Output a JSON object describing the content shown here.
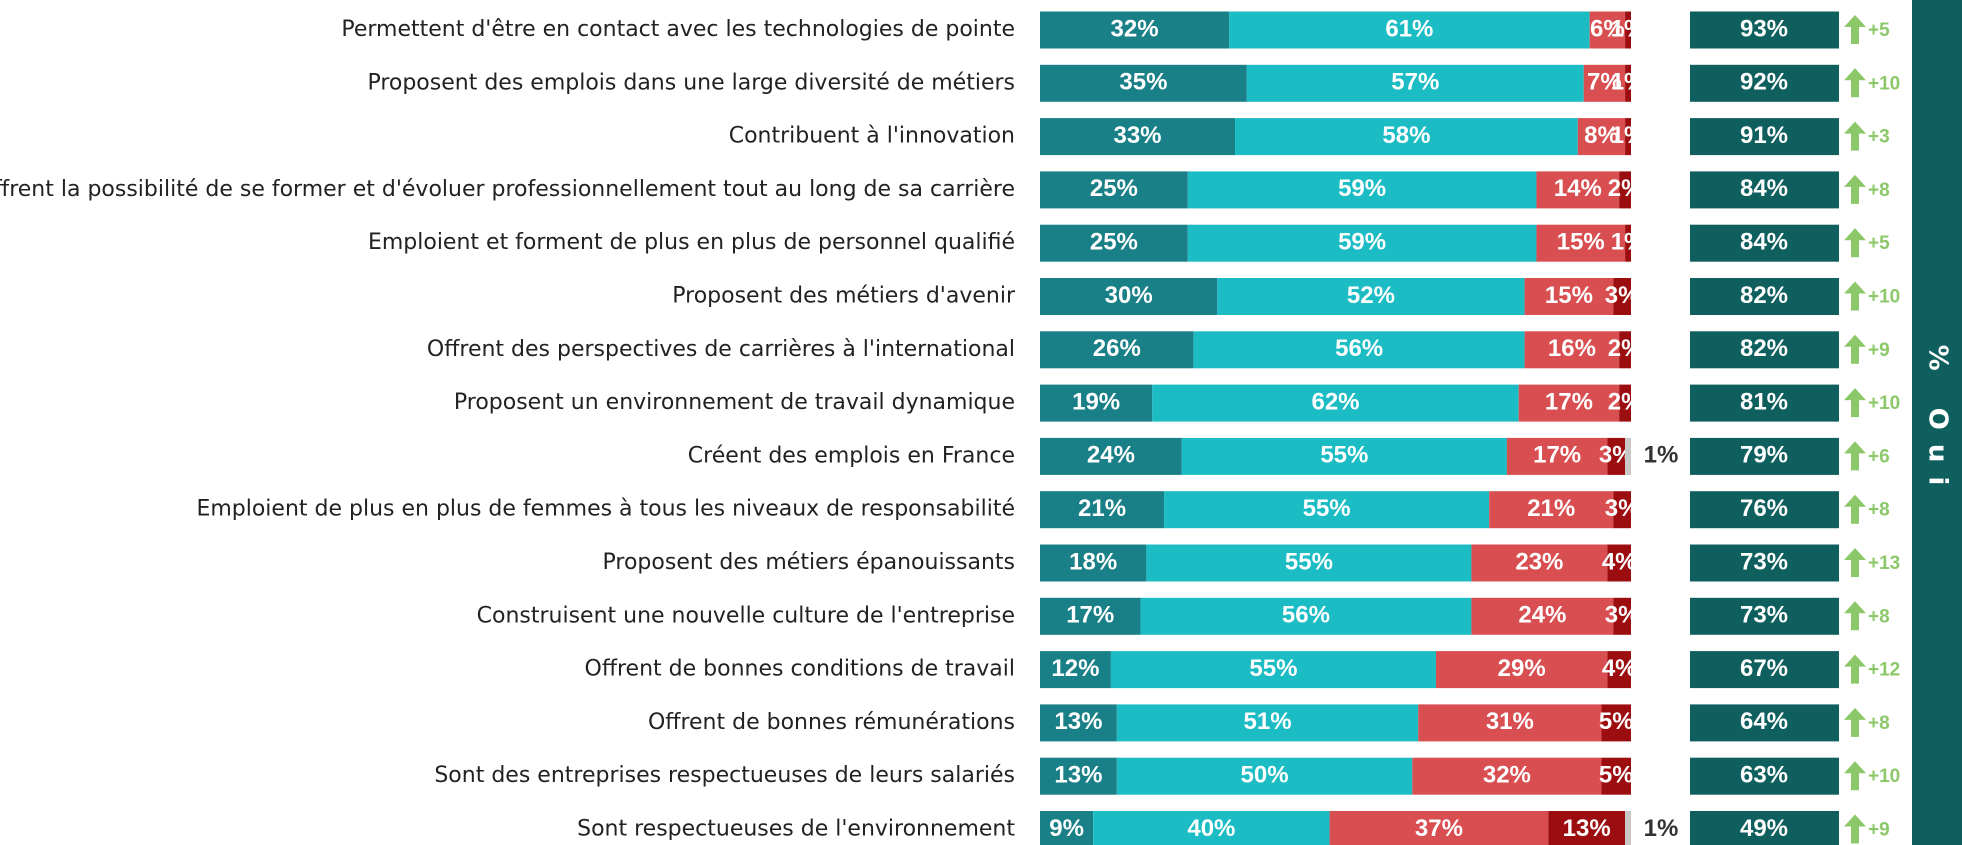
{
  "chart_data": {
    "type": "stacked-bar-horizontal",
    "categories": [
      "Permettent d'être en contact avec les technologies de pointe",
      "Proposent des emplois dans une large diversité de métiers",
      "Contribuent à l'innovation",
      "Offrent la possibilité de se former et d'évoluer professionnellement tout au long de sa carrière",
      "Emploient et forment de plus en plus de personnel qualifié",
      "Proposent des métiers d'avenir",
      "Offrent des perspectives de carrières à l'international",
      "Proposent un environnement de travail dynamique",
      "Créent des emplois en France",
      "Emploient de plus en plus de femmes à tous les niveaux de responsabilité",
      "Proposent des métiers épanouissants",
      "Construisent une nouvelle culture de l'entreprise",
      "Offrent de bonnes conditions de travail",
      "Offrent de bonnes rémunérations",
      "Sont des entreprises respectueuses de leurs salariés",
      "Sont respectueuses de l'environnement"
    ],
    "xlim": [
      0,
      100
    ],
    "series": [
      {
        "color": "#1a8088",
        "values": [
          32,
          35,
          33,
          25,
          25,
          30,
          26,
          19,
          24,
          21,
          18,
          17,
          12,
          13,
          13,
          9
        ],
        "value_labels": [
          "32%",
          "35%",
          "33%",
          "25%",
          "25%",
          "30%",
          "26%",
          "19%",
          "24%",
          "21%",
          "18%",
          "17%",
          "12%",
          "13%",
          "13%",
          "9%"
        ]
      },
      {
        "color": "#1cbcc5",
        "values": [
          61,
          57,
          58,
          59,
          59,
          52,
          56,
          62,
          55,
          55,
          55,
          56,
          55,
          51,
          50,
          40
        ],
        "value_labels": [
          "61%",
          "57%",
          "58%",
          "59%",
          "59%",
          "52%",
          "56%",
          "62%",
          "55%",
          "55%",
          "55%",
          "56%",
          "55%",
          "51%",
          "50%",
          "40%"
        ]
      },
      {
        "color": "#d84e51",
        "values": [
          6,
          7,
          8,
          14,
          15,
          15,
          16,
          17,
          17,
          21,
          23,
          24,
          29,
          31,
          32,
          37
        ],
        "value_labels": [
          "6%",
          "7%",
          "8%",
          "14%",
          "15%",
          "15%",
          "16%",
          "17%",
          "17%",
          "21%",
          "23%",
          "24%",
          "29%",
          "31%",
          "32%",
          "37%"
        ]
      },
      {
        "color": "#9c0d0f",
        "values": [
          1,
          1,
          1,
          2,
          1,
          3,
          2,
          2,
          3,
          3,
          4,
          3,
          4,
          5,
          5,
          13
        ],
        "value_labels": [
          "1%",
          "1%",
          "1%",
          "2%",
          "1%",
          "3%",
          "2%",
          "2%",
          "3%",
          "3%",
          "4%",
          "3%",
          "4%",
          "5%",
          "5%",
          "13%"
        ]
      },
      {
        "color": "#c8c8c8",
        "values": [
          null,
          null,
          null,
          null,
          null,
          null,
          null,
          null,
          1,
          null,
          null,
          null,
          null,
          null,
          null,
          1
        ],
        "value_labels": [
          null,
          null,
          null,
          null,
          null,
          null,
          null,
          null,
          "1%",
          null,
          null,
          null,
          null,
          null,
          null,
          "1%"
        ]
      }
    ],
    "totals": {
      "title": "% Oui",
      "color": "#0f5f5f",
      "values": [
        93,
        92,
        91,
        84,
        84,
        82,
        82,
        81,
        79,
        76,
        73,
        73,
        67,
        64,
        63,
        49
      ],
      "value_labels": [
        "93%",
        "92%",
        "91%",
        "84%",
        "84%",
        "82%",
        "82%",
        "81%",
        "79%",
        "76%",
        "73%",
        "73%",
        "67%",
        "64%",
        "63%",
        "49%"
      ]
    },
    "deltas": {
      "color": "#8cc86a",
      "values": [
        5,
        10,
        3,
        8,
        5,
        10,
        9,
        10,
        6,
        8,
        13,
        8,
        12,
        8,
        10,
        9
      ],
      "value_labels": [
        "+5",
        "+10",
        "+3",
        "+8",
        "+5",
        "+10",
        "+9",
        "+10",
        "+6",
        "+8",
        "+13",
        "+8",
        "+12",
        "+8",
        "+10",
        "+9"
      ]
    }
  }
}
